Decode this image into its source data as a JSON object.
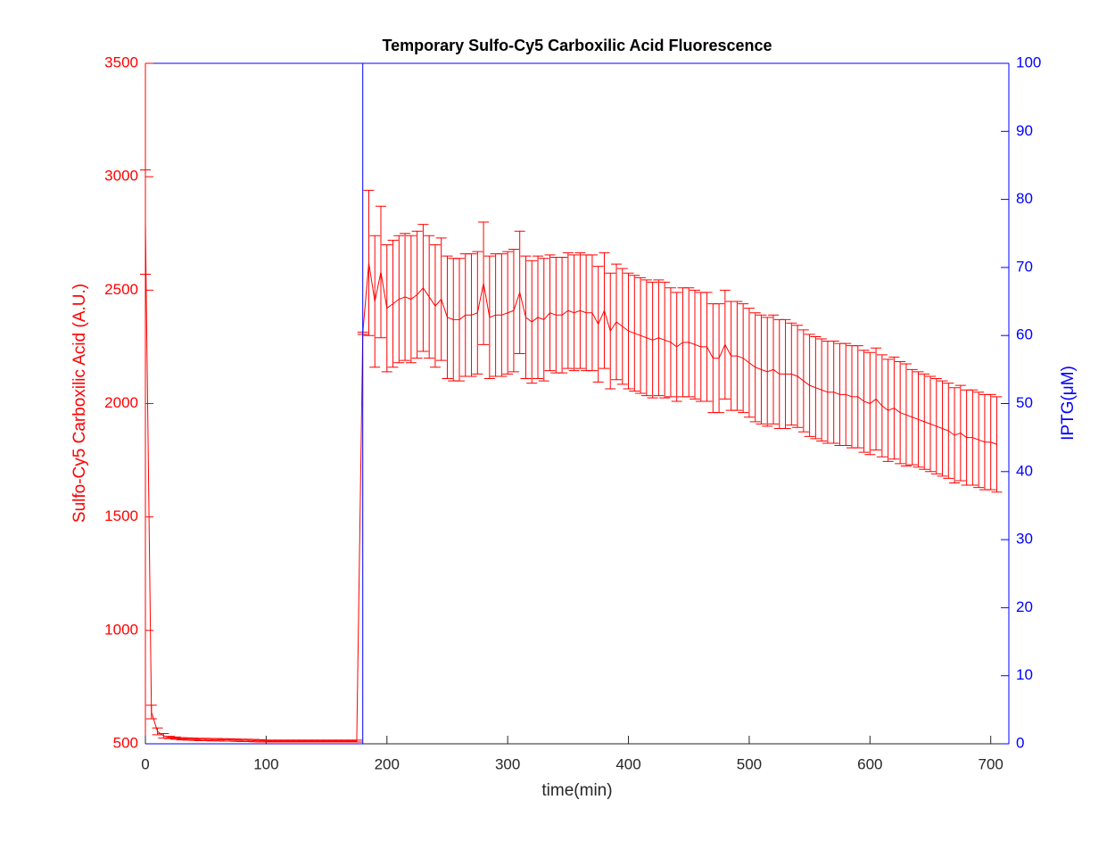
{
  "chart_data": {
    "type": "line",
    "title": "Temporary Sulfo-Cy5 Carboxilic Acid Fluorescence",
    "xlabel": "time(min)",
    "ylabel": "Sulfo-Cy5 Carboxilic Acid (A.U.)",
    "y2label": "IPTG(μM)",
    "xlim": [
      0,
      715
    ],
    "ylim": [
      500,
      3500
    ],
    "y2lim": [
      0,
      100
    ],
    "xticks": [
      0,
      100,
      200,
      300,
      400,
      500,
      600,
      700
    ],
    "yticks": [
      500,
      1000,
      1500,
      2000,
      2500,
      3000,
      3500
    ],
    "y2ticks": [
      0,
      10,
      20,
      30,
      40,
      50,
      60,
      70,
      80,
      90,
      100
    ],
    "x": [
      0,
      5,
      10,
      15,
      20,
      25,
      30,
      35,
      40,
      45,
      50,
      55,
      60,
      65,
      70,
      75,
      80,
      85,
      90,
      95,
      100,
      105,
      110,
      115,
      120,
      125,
      130,
      135,
      140,
      145,
      150,
      155,
      160,
      165,
      170,
      175,
      180,
      185,
      190,
      195,
      200,
      205,
      210,
      215,
      220,
      225,
      230,
      235,
      240,
      245,
      250,
      255,
      260,
      265,
      270,
      275,
      280,
      285,
      290,
      295,
      300,
      305,
      310,
      315,
      320,
      325,
      330,
      335,
      340,
      345,
      350,
      355,
      360,
      365,
      370,
      375,
      380,
      385,
      390,
      395,
      400,
      405,
      410,
      415,
      420,
      425,
      430,
      435,
      440,
      445,
      450,
      455,
      460,
      465,
      470,
      475,
      480,
      485,
      490,
      495,
      500,
      505,
      510,
      515,
      520,
      525,
      530,
      535,
      540,
      545,
      550,
      555,
      560,
      565,
      570,
      575,
      580,
      585,
      590,
      595,
      600,
      605,
      610,
      615,
      620,
      625,
      630,
      635,
      640,
      645,
      650,
      655,
      660,
      665,
      670,
      675,
      680,
      685,
      690,
      695,
      700,
      705
    ],
    "series": [
      {
        "color": "#ff0000",
        "values": [
          2800,
          640,
          555,
          535,
          528,
          525,
          522,
          521,
          520,
          519,
          519,
          518,
          518,
          517,
          517,
          516,
          515,
          515,
          514,
          513,
          512,
          512,
          512,
          512,
          512,
          512,
          512,
          512,
          512,
          512,
          512,
          512,
          512,
          512,
          512,
          512,
          2310,
          2620,
          2450,
          2580,
          2420,
          2440,
          2460,
          2470,
          2460,
          2480,
          2510,
          2470,
          2430,
          2460,
          2380,
          2370,
          2370,
          2390,
          2390,
          2400,
          2530,
          2380,
          2390,
          2390,
          2400,
          2410,
          2490,
          2380,
          2360,
          2380,
          2370,
          2400,
          2390,
          2390,
          2410,
          2400,
          2410,
          2400,
          2400,
          2350,
          2410,
          2320,
          2360,
          2340,
          2320,
          2310,
          2300,
          2290,
          2280,
          2290,
          2280,
          2270,
          2250,
          2270,
          2270,
          2260,
          2250,
          2250,
          2200,
          2200,
          2260,
          2210,
          2210,
          2200,
          2180,
          2160,
          2150,
          2140,
          2150,
          2130,
          2130,
          2130,
          2120,
          2100,
          2080,
          2070,
          2060,
          2050,
          2050,
          2040,
          2040,
          2030,
          2030,
          2010,
          2000,
          2020,
          1990,
          1970,
          1980,
          1960,
          1950,
          1940,
          1930,
          1920,
          1910,
          1900,
          1890,
          1880,
          1860,
          1870,
          1850,
          1850,
          1840,
          1830,
          1830,
          1820
        ],
        "errors": [
          230,
          30,
          15,
          10,
          5,
          5,
          5,
          5,
          5,
          5,
          5,
          5,
          5,
          5,
          5,
          5,
          5,
          5,
          5,
          5,
          4,
          4,
          4,
          4,
          4,
          4,
          4,
          4,
          4,
          4,
          4,
          4,
          4,
          4,
          4,
          4,
          5,
          320,
          290,
          290,
          280,
          280,
          280,
          280,
          280,
          280,
          280,
          270,
          270,
          270,
          270,
          270,
          270,
          270,
          270,
          270,
          270,
          270,
          270,
          270,
          270,
          270,
          270,
          270,
          270,
          270,
          270,
          255,
          255,
          255,
          255,
          255,
          255,
          255,
          255,
          255,
          255,
          255,
          255,
          255,
          255,
          255,
          255,
          255,
          255,
          255,
          255,
          240,
          240,
          240,
          240,
          240,
          240,
          240,
          240,
          240,
          240,
          240,
          240,
          240,
          240,
          240,
          240,
          240,
          240,
          240,
          240,
          225,
          225,
          225,
          225,
          225,
          225,
          225,
          225,
          225,
          225,
          225,
          225,
          225,
          225,
          225,
          225,
          225,
          225,
          225,
          225,
          210,
          210,
          210,
          210,
          210,
          210,
          210,
          210,
          210,
          210,
          210,
          210,
          210,
          210,
          210
        ]
      },
      {
        "color": "#0000ff",
        "axis": "y2",
        "x": [
          0,
          180,
          180,
          715
        ],
        "values": [
          0,
          0,
          100,
          100
        ]
      }
    ]
  }
}
